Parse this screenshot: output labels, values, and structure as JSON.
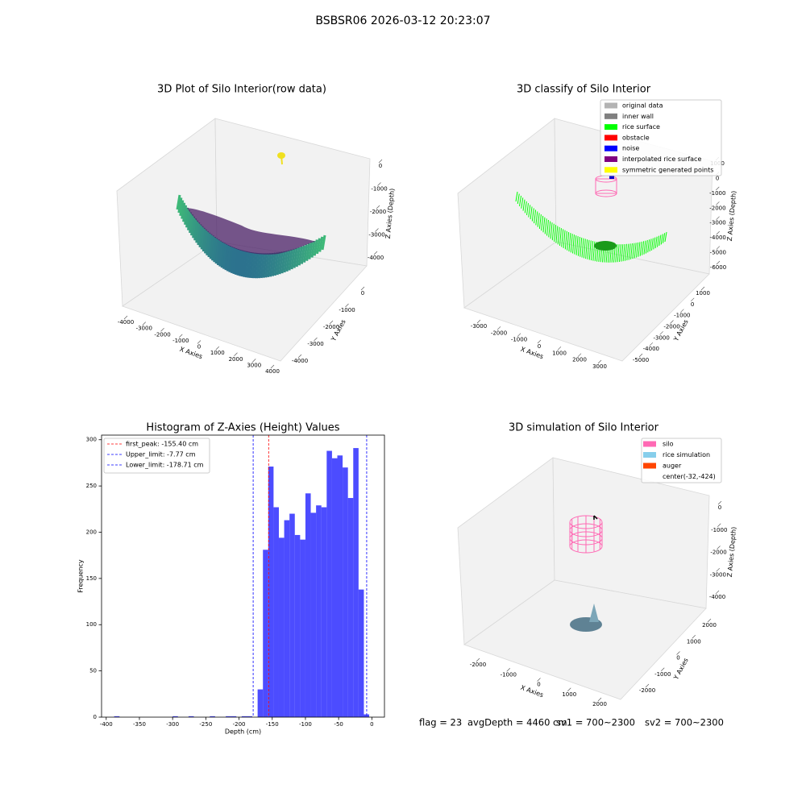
{
  "title": "BSBSR06 2026-03-12 20:23:07",
  "chart_data": [
    {
      "type": "scatter3d",
      "title": "3D Plot of Silo Interior(row data)",
      "xlabel": "X Axies",
      "ylabel": "Y Axies",
      "zlabel": "Z Axies (Depth)",
      "xlim": [
        -4000,
        4000
      ],
      "ylim": [
        0,
        -4000
      ],
      "zlim": [
        0,
        -4000
      ],
      "xticks": [
        -4000,
        -3000,
        -2000,
        -1000,
        0,
        1000,
        2000,
        3000,
        4000
      ],
      "yticks": [
        0,
        -1000,
        -2000,
        -3000,
        -4000
      ],
      "zticks": [
        0,
        -1000,
        -2000,
        -3000,
        -4000
      ]
    },
    {
      "type": "scatter3d",
      "title": "3D classify of Silo Interior",
      "xlabel": "X Axies",
      "ylabel": "Y Axies",
      "zlabel": "Z Axies (Depth)",
      "xlim": [
        -3000,
        3000
      ],
      "ylim": [
        1000,
        -5000
      ],
      "zlim": [
        1000,
        -6000
      ],
      "xticks": [
        -3000,
        -2000,
        -1000,
        0,
        1000,
        2000,
        3000
      ],
      "yticks": [
        1000,
        0,
        -1000,
        -2000,
        -3000,
        -4000,
        -5000
      ],
      "zticks": [
        1000,
        0,
        -1000,
        -2000,
        -3000,
        -4000,
        -5000,
        -6000
      ],
      "legend": [
        {
          "name": "original data",
          "color": "#b3b3b3"
        },
        {
          "name": "inner wall",
          "color": "#808080"
        },
        {
          "name": "rice surface",
          "color": "#00ff00"
        },
        {
          "name": "obstacle",
          "color": "#ff0000"
        },
        {
          "name": "noise",
          "color": "#0000ff"
        },
        {
          "name": "interpolated rice surface",
          "color": "#800080"
        },
        {
          "name": "symmetric generated points",
          "color": "#ffff00"
        }
      ]
    },
    {
      "type": "histogram",
      "title": "Histogram of Z-Axies (Height) Values",
      "xlabel": "Depth (cm)",
      "ylabel": "Frequency",
      "color": "#0000ff",
      "alpha": 0.7,
      "bins": [
        -396,
        -388,
        -380,
        -372,
        -364,
        -356,
        -348,
        -340,
        -332,
        -324,
        -316,
        -308,
        -300,
        -292,
        -284,
        -276,
        -268,
        -260,
        -252,
        -244,
        -236,
        -228,
        -220,
        -212,
        -204,
        -196,
        -188,
        -180,
        -172,
        -164,
        -156,
        -148,
        -140,
        -132,
        -124,
        -116,
        -108,
        -100,
        -92,
        -84,
        -76,
        -68,
        -60,
        -52,
        -44,
        -36,
        -28,
        -20,
        -12,
        -4,
        4
      ],
      "values": [
        0,
        1,
        0,
        0,
        0,
        0,
        0,
        0,
        0,
        0,
        0,
        0,
        1,
        0,
        0,
        1,
        0,
        0,
        0,
        1,
        0,
        0,
        1,
        1,
        0,
        1,
        1,
        0,
        30,
        181,
        271,
        227,
        194,
        213,
        220,
        197,
        192,
        242,
        221,
        229,
        227,
        288,
        280,
        283,
        270,
        237,
        291,
        138,
        3,
        0
      ],
      "xlim": [
        -407,
        19
      ],
      "ylim": [
        0,
        305
      ],
      "xticks": [
        -400,
        -350,
        -300,
        -250,
        -200,
        -150,
        -100,
        -50,
        0
      ],
      "yticks": [
        0,
        50,
        100,
        150,
        200,
        250,
        300
      ],
      "lines": [
        {
          "name": "first_peak: -155.40 cm",
          "value": -155.4,
          "color": "#ff0000"
        },
        {
          "name": "Upper_limit: -7.77 cm",
          "value": -7.77,
          "color": "#0000ff"
        },
        {
          "name": "Lower_limit: -178.71 cm",
          "value": -178.71,
          "color": "#0000ff"
        }
      ]
    },
    {
      "type": "surface3d",
      "title": "3D simulation of Silo Interior",
      "xlabel": "X Axies",
      "ylabel": "Y Axies",
      "zlabel": "Z Axies (Depth)",
      "xlim": [
        -2000,
        2000
      ],
      "ylim": [
        2000,
        -2000
      ],
      "zlim": [
        0,
        -4000
      ],
      "xticks": [
        -2000,
        -1000,
        0,
        1000,
        2000
      ],
      "yticks": [
        2000,
        1000,
        0,
        -1000,
        -2000
      ],
      "zticks": [
        0,
        -1000,
        -2000,
        -3000,
        -4000
      ],
      "legend": [
        {
          "name": "silo",
          "color": "#ff69b4"
        },
        {
          "name": "rice simulation",
          "color": "#87ceeb"
        },
        {
          "name": "auger",
          "color": "#ff4500"
        },
        {
          "name": "center(-32,-424)"
        }
      ],
      "annotations": [
        "flag = 23",
        "avgDepth = 4460 cm",
        "sv1 = 700~2300",
        "sv2 = 700~2300"
      ]
    }
  ]
}
